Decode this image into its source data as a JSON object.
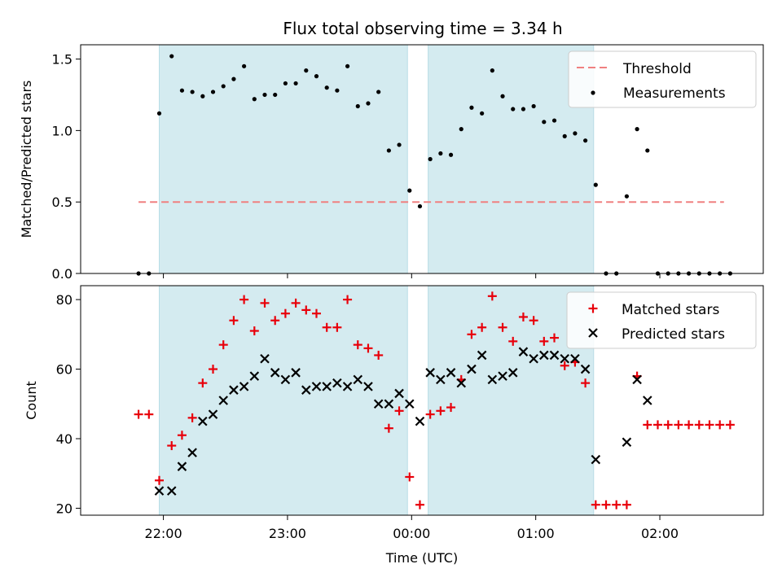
{
  "chart_data": [
    {
      "type": "scatter",
      "title": "Flux total observing time = 3.34 h",
      "xlabel": "",
      "ylabel": "Matched/Predicted stars",
      "ylim": [
        0,
        1.6
      ],
      "yticks": [
        0.0,
        0.5,
        1.0,
        1.5
      ],
      "ytick_labels": [
        "0.0",
        "0.5",
        "1.0",
        "1.5"
      ],
      "legend_position": "top-right",
      "grid": false,
      "shaded_intervals": [
        [
          "21:58",
          "23:58"
        ],
        [
          "00:08",
          "01:28"
        ]
      ],
      "threshold": {
        "name": "Threshold",
        "value": 0.5,
        "x_range": [
          "21:48",
          "02:31"
        ],
        "color": "#f08080",
        "style": "dashed"
      },
      "series": [
        {
          "name": "Measurements",
          "marker": "dot",
          "color": "#000000",
          "points": [
            [
              "21:48",
              0
            ],
            [
              "21:53",
              0
            ],
            [
              "21:58",
              1.12
            ],
            [
              "22:04",
              1.52
            ],
            [
              "22:09",
              1.28
            ],
            [
              "22:14",
              1.27
            ],
            [
              "22:19",
              1.24
            ],
            [
              "22:24",
              1.27
            ],
            [
              "22:29",
              1.31
            ],
            [
              "22:34",
              1.36
            ],
            [
              "22:39",
              1.45
            ],
            [
              "22:44",
              1.22
            ],
            [
              "22:49",
              1.25
            ],
            [
              "22:54",
              1.25
            ],
            [
              "22:59",
              1.33
            ],
            [
              "23:04",
              1.33
            ],
            [
              "23:09",
              1.42
            ],
            [
              "23:14",
              1.38
            ],
            [
              "23:19",
              1.3
            ],
            [
              "23:24",
              1.28
            ],
            [
              "23:29",
              1.45
            ],
            [
              "23:34",
              1.17
            ],
            [
              "23:39",
              1.19
            ],
            [
              "23:44",
              1.27
            ],
            [
              "23:49",
              0.86
            ],
            [
              "23:54",
              0.9
            ],
            [
              "23:59",
              0.58
            ],
            [
              "00:04",
              0.47
            ],
            [
              "00:09",
              0.8
            ],
            [
              "00:14",
              0.84
            ],
            [
              "00:19",
              0.83
            ],
            [
              "00:24",
              1.01
            ],
            [
              "00:29",
              1.16
            ],
            [
              "00:34",
              1.12
            ],
            [
              "00:39",
              1.42
            ],
            [
              "00:44",
              1.24
            ],
            [
              "00:49",
              1.15
            ],
            [
              "00:54",
              1.15
            ],
            [
              "00:59",
              1.17
            ],
            [
              "01:04",
              1.06
            ],
            [
              "01:09",
              1.07
            ],
            [
              "01:14",
              0.96
            ],
            [
              "01:19",
              0.98
            ],
            [
              "01:24",
              0.93
            ],
            [
              "01:29",
              0.62
            ],
            [
              "01:34",
              0
            ],
            [
              "01:39",
              0
            ],
            [
              "01:44",
              0.54
            ],
            [
              "01:49",
              1.01
            ],
            [
              "01:54",
              0.86
            ],
            [
              "01:59",
              0
            ],
            [
              "02:04",
              0
            ],
            [
              "02:09",
              0
            ],
            [
              "02:14",
              0
            ],
            [
              "02:19",
              0
            ],
            [
              "02:24",
              0
            ],
            [
              "02:29",
              0
            ],
            [
              "02:34",
              0
            ]
          ]
        }
      ]
    },
    {
      "type": "scatter",
      "title": "",
      "xlabel": "Time (UTC)",
      "ylabel": "Count",
      "ylim": [
        18,
        84
      ],
      "yticks": [
        20,
        40,
        60,
        80
      ],
      "ytick_labels": [
        "20",
        "40",
        "60",
        "80"
      ],
      "xlim": [
        "21:20",
        "02:50"
      ],
      "xticks": [
        "22:00",
        "23:00",
        "00:00",
        "01:00",
        "02:00"
      ],
      "xtick_labels": [
        "22:00",
        "23:00",
        "00:00",
        "01:00",
        "02:00"
      ],
      "legend_position": "top-right",
      "grid": false,
      "shaded_intervals": [
        [
          "21:58",
          "23:58"
        ],
        [
          "00:08",
          "01:28"
        ]
      ],
      "series": [
        {
          "name": "Matched stars",
          "marker": "plus",
          "color": "#e8000b",
          "points": [
            [
              "21:48",
              47
            ],
            [
              "21:53",
              47
            ],
            [
              "21:58",
              28
            ],
            [
              "22:04",
              38
            ],
            [
              "22:09",
              41
            ],
            [
              "22:14",
              46
            ],
            [
              "22:19",
              56
            ],
            [
              "22:24",
              60
            ],
            [
              "22:29",
              67
            ],
            [
              "22:34",
              74
            ],
            [
              "22:39",
              80
            ],
            [
              "22:44",
              71
            ],
            [
              "22:49",
              79
            ],
            [
              "22:54",
              74
            ],
            [
              "22:59",
              76
            ],
            [
              "23:04",
              79
            ],
            [
              "23:09",
              77
            ],
            [
              "23:14",
              76
            ],
            [
              "23:19",
              72
            ],
            [
              "23:24",
              72
            ],
            [
              "23:29",
              80
            ],
            [
              "23:34",
              67
            ],
            [
              "23:39",
              66
            ],
            [
              "23:44",
              64
            ],
            [
              "23:49",
              43
            ],
            [
              "23:54",
              48
            ],
            [
              "23:59",
              29
            ],
            [
              "00:04",
              21
            ],
            [
              "00:09",
              47
            ],
            [
              "00:14",
              48
            ],
            [
              "00:19",
              49
            ],
            [
              "00:24",
              57
            ],
            [
              "00:29",
              70
            ],
            [
              "00:34",
              72
            ],
            [
              "00:39",
              81
            ],
            [
              "00:44",
              72
            ],
            [
              "00:49",
              68
            ],
            [
              "00:54",
              75
            ],
            [
              "00:59",
              74
            ],
            [
              "01:04",
              68
            ],
            [
              "01:09",
              69
            ],
            [
              "01:14",
              61
            ],
            [
              "01:19",
              62
            ],
            [
              "01:24",
              56
            ],
            [
              "01:29",
              21
            ],
            [
              "01:34",
              21
            ],
            [
              "01:39",
              21
            ],
            [
              "01:44",
              21
            ],
            [
              "01:49",
              58
            ],
            [
              "01:54",
              44
            ],
            [
              "01:59",
              44
            ],
            [
              "02:04",
              44
            ],
            [
              "02:09",
              44
            ],
            [
              "02:14",
              44
            ],
            [
              "02:19",
              44
            ],
            [
              "02:24",
              44
            ],
            [
              "02:29",
              44
            ],
            [
              "02:34",
              44
            ]
          ]
        },
        {
          "name": "Predicted stars",
          "marker": "x",
          "color": "#000000",
          "points": [
            [
              "21:58",
              25
            ],
            [
              "22:04",
              25
            ],
            [
              "22:09",
              32
            ],
            [
              "22:14",
              36
            ],
            [
              "22:19",
              45
            ],
            [
              "22:24",
              47
            ],
            [
              "22:29",
              51
            ],
            [
              "22:34",
              54
            ],
            [
              "22:39",
              55
            ],
            [
              "22:44",
              58
            ],
            [
              "22:49",
              63
            ],
            [
              "22:54",
              59
            ],
            [
              "22:59",
              57
            ],
            [
              "23:04",
              59
            ],
            [
              "23:09",
              54
            ],
            [
              "23:14",
              55
            ],
            [
              "23:19",
              55
            ],
            [
              "23:24",
              56
            ],
            [
              "23:29",
              55
            ],
            [
              "23:34",
              57
            ],
            [
              "23:39",
              55
            ],
            [
              "23:44",
              50
            ],
            [
              "23:49",
              50
            ],
            [
              "23:54",
              53
            ],
            [
              "23:59",
              50
            ],
            [
              "00:04",
              45
            ],
            [
              "00:09",
              59
            ],
            [
              "00:14",
              57
            ],
            [
              "00:19",
              59
            ],
            [
              "00:24",
              56
            ],
            [
              "00:29",
              60
            ],
            [
              "00:34",
              64
            ],
            [
              "00:39",
              57
            ],
            [
              "00:44",
              58
            ],
            [
              "00:49",
              59
            ],
            [
              "00:54",
              65
            ],
            [
              "00:59",
              63
            ],
            [
              "01:04",
              64
            ],
            [
              "01:09",
              64
            ],
            [
              "01:14",
              63
            ],
            [
              "01:19",
              63
            ],
            [
              "01:24",
              60
            ],
            [
              "01:29",
              34
            ],
            [
              "01:44",
              39
            ],
            [
              "01:49",
              57
            ],
            [
              "01:54",
              51
            ]
          ]
        }
      ]
    }
  ],
  "colors": {
    "shade": "#d4ebf0",
    "shade_edge": "#b8dde6"
  }
}
